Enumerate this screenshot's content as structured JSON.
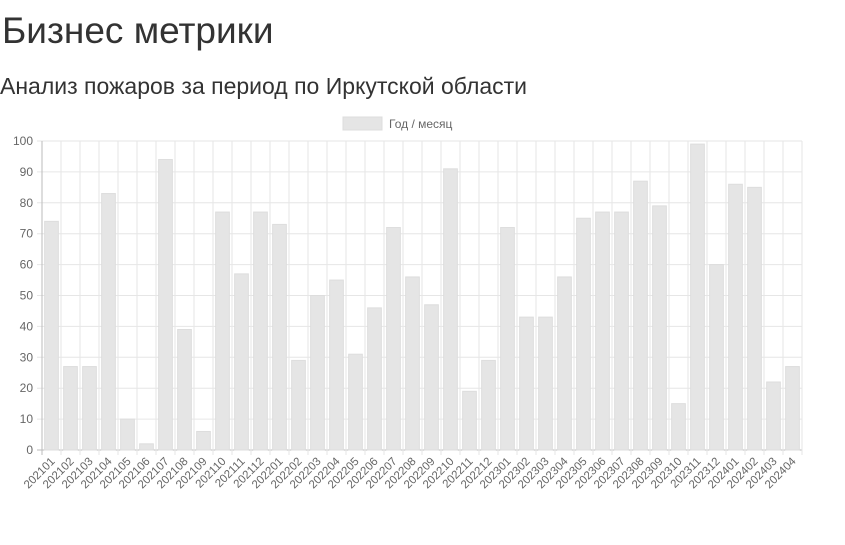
{
  "page": {
    "title": "Бизнес метрики",
    "chart_title": "Анализ пожаров за период по Иркутской области"
  },
  "colors": {
    "bar_fill": "#e5e5e5",
    "bar_stroke": "#dddddd",
    "grid": "#e6e6e6",
    "axis": "#bbbbbb"
  },
  "chart_data": {
    "type": "bar",
    "title": "Анализ пожаров за период по Иркутской области",
    "xlabel": "",
    "ylabel": "",
    "ylim": [
      0,
      100
    ],
    "yticks": [
      0,
      10,
      20,
      30,
      40,
      50,
      60,
      70,
      80,
      90,
      100
    ],
    "grid": true,
    "legend": {
      "position": "top-center",
      "entries": [
        "Год / месяц"
      ]
    },
    "categories": [
      "202101",
      "202102",
      "202103",
      "202104",
      "202105",
      "202106",
      "202107",
      "202108",
      "202109",
      "202110",
      "202111",
      "202112",
      "202201",
      "202202",
      "202203",
      "202204",
      "202205",
      "202206",
      "202207",
      "202208",
      "202209",
      "202210",
      "202211",
      "202212",
      "202301",
      "202302",
      "202303",
      "202304",
      "202305",
      "202306",
      "202307",
      "202308",
      "202309",
      "202310",
      "202311",
      "202312",
      "202401",
      "202402",
      "202403",
      "202404"
    ],
    "series": [
      {
        "name": "Год / месяц",
        "values": [
          74,
          27,
          27,
          83,
          10,
          2,
          94,
          39,
          6,
          77,
          57,
          77,
          73,
          29,
          50,
          55,
          31,
          46,
          72,
          56,
          47,
          91,
          19,
          29,
          72,
          43,
          43,
          56,
          75,
          77,
          77,
          87,
          79,
          15,
          99,
          60,
          86,
          85,
          22,
          27
        ]
      }
    ]
  }
}
